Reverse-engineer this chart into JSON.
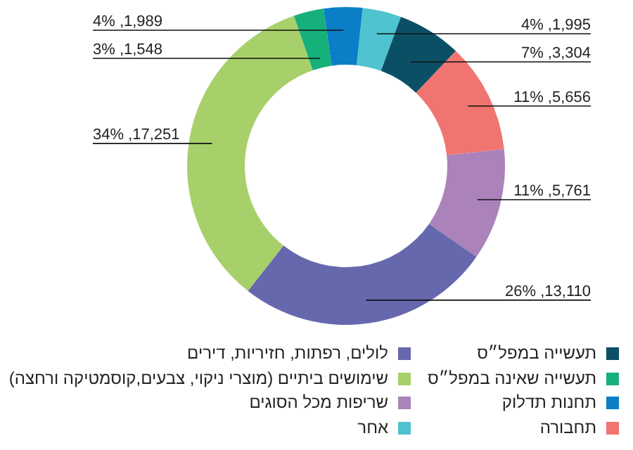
{
  "chart_data": {
    "type": "donut",
    "categories": [
      "אחר",
      "תעשייה במפל״ס",
      "תחבורה",
      "שריפות מכל הסוגים",
      "לולים, רפתות, חזיריות, דירים",
      "שימושים ביתיים (מוצרי ניקוי, צבעים,קוסמטיקה ורחצה)",
      "תעשייה שאינה במפל״ס",
      "תחנות תדלוק"
    ],
    "values": [
      1995,
      3304,
      5656,
      5761,
      13110,
      17251,
      1548,
      1989
    ],
    "colors": [
      "#4fc3d0",
      "#0b4f66",
      "#f07470",
      "#ab82ba",
      "#6668ae",
      "#a8d06a",
      "#16b07a",
      "#0a7fc7"
    ],
    "value_labels": [
      "4% ,1,995",
      "7% ,3,304",
      "11% ,5,656",
      "11% ,5,761",
      "26% ,13,110",
      "34% ,17,251",
      "3% ,1,548",
      "4% ,1,989"
    ],
    "legend": "bottom"
  }
}
